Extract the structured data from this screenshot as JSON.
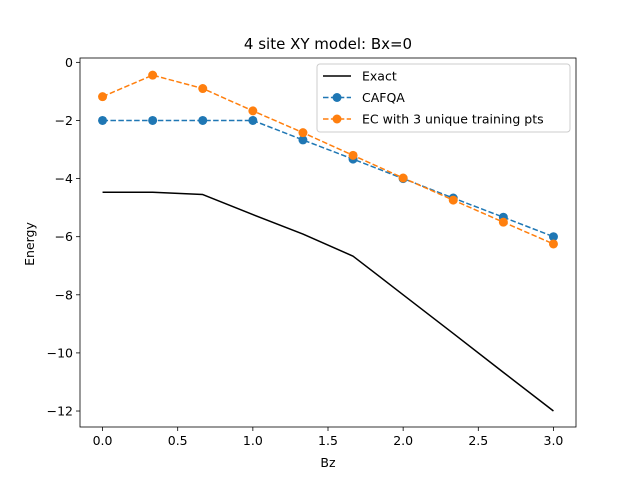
{
  "chart_data": {
    "type": "line",
    "title": "4 site XY model: Bx=0",
    "xlabel": "Bz",
    "ylabel": "Energy",
    "xlim": [
      -0.15,
      3.15
    ],
    "ylim": [
      -12.55,
      0.15
    ],
    "xticks": [
      0.0,
      0.5,
      1.0,
      1.5,
      2.0,
      2.5,
      3.0
    ],
    "xtick_labels": [
      "0.0",
      "0.5",
      "1.0",
      "1.5",
      "2.0",
      "2.5",
      "3.0"
    ],
    "yticks": [
      0,
      -2,
      -4,
      -6,
      -8,
      -10,
      -12
    ],
    "ytick_labels": [
      "0",
      "−2",
      "−4",
      "−6",
      "−8",
      "−10",
      "−12"
    ],
    "grid": false,
    "legend_position": "top-right",
    "series": [
      {
        "name": "Exact",
        "color": "#000000",
        "style": "solid",
        "marker": "none",
        "x": [
          0.0,
          0.3333,
          0.6667,
          1.0,
          1.3333,
          1.6667,
          2.0,
          2.3333,
          2.6667,
          3.0
        ],
        "y": [
          -4.47,
          -4.47,
          -4.55,
          -5.24,
          -5.91,
          -6.67,
          -8.0,
          -9.33,
          -10.67,
          -12.0
        ]
      },
      {
        "name": "CAFQA",
        "color": "#1f77b4",
        "style": "dashed",
        "marker": "circle",
        "x": [
          0.0,
          0.3333,
          0.6667,
          1.0,
          1.3333,
          1.6667,
          2.0,
          2.3333,
          2.6667,
          3.0
        ],
        "y": [
          -2.0,
          -2.0,
          -2.0,
          -2.0,
          -2.67,
          -3.33,
          -4.0,
          -4.67,
          -5.33,
          -6.0
        ]
      },
      {
        "name": "EC with 3 unique training pts",
        "color": "#ff7f0e",
        "style": "dashed",
        "marker": "circle",
        "x": [
          0.0,
          0.3333,
          0.6667,
          1.0,
          1.3333,
          1.6667,
          2.0,
          2.3333,
          2.6667,
          3.0
        ],
        "y": [
          -1.18,
          -0.44,
          -0.9,
          -1.67,
          -2.42,
          -3.2,
          -3.98,
          -4.74,
          -5.5,
          -6.25
        ]
      }
    ]
  }
}
